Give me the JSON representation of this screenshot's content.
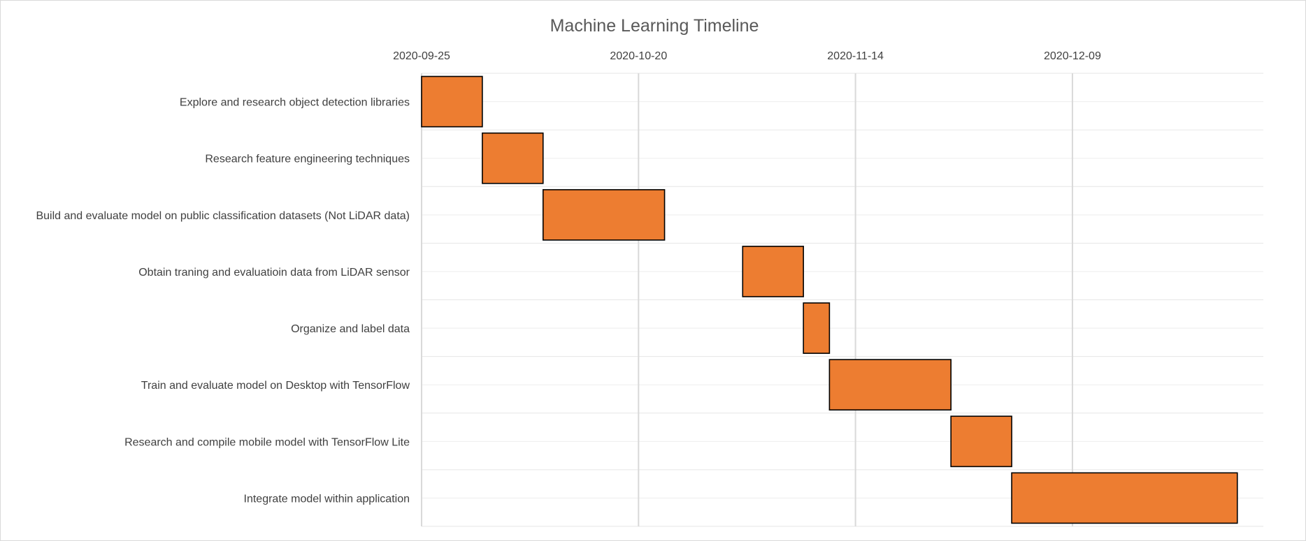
{
  "chart_data": {
    "type": "bar",
    "orientation": "horizontal-gantt",
    "title": "Machine Learning Timeline",
    "xlabel": "",
    "ylabel": "",
    "x_axis_position": "top",
    "x_ticks": [
      "2020-09-25",
      "2020-10-20",
      "2020-11-14",
      "2020-12-09"
    ],
    "xlim": [
      "2020-09-25",
      "2020-12-31"
    ],
    "grid": true,
    "legend": "none",
    "bar_color": "#ed7d31",
    "bar_edge_color": "#000000",
    "tasks": [
      {
        "label": "Explore and research object detection libraries",
        "start": "2020-09-25",
        "end": "2020-10-02"
      },
      {
        "label": "Research feature engineering techniques",
        "start": "2020-10-02",
        "end": "2020-10-09"
      },
      {
        "label": "Build and evaluate model on public classification datasets (Not LiDAR data)",
        "start": "2020-10-09",
        "end": "2020-10-23"
      },
      {
        "label": "Obtain traning and evaluatioin data from LiDAR sensor",
        "start": "2020-11-01",
        "end": "2020-11-08"
      },
      {
        "label": "Organize and label data",
        "start": "2020-11-08",
        "end": "2020-11-11"
      },
      {
        "label": "Train and evaluate model on Desktop with TensorFlow",
        "start": "2020-11-11",
        "end": "2020-11-25"
      },
      {
        "label": "Research and compile mobile model with TensorFlow Lite",
        "start": "2020-11-25",
        "end": "2020-12-02"
      },
      {
        "label": "Integrate model within application",
        "start": "2020-12-02",
        "end": "2020-12-28"
      }
    ]
  }
}
